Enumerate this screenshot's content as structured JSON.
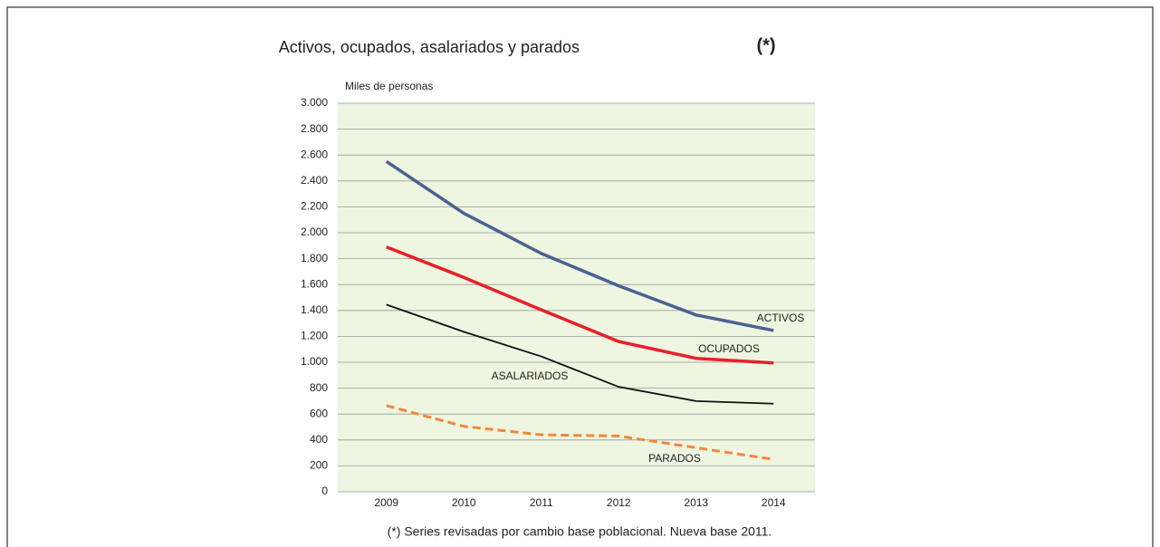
{
  "chart_data": {
    "type": "line",
    "title": "Activos, ocupados, asalariados y parados",
    "title_mark": "(*)",
    "y_label": "Miles de personas",
    "footnote": "(*) Series revisadas por cambio base poblacional. Nueva base 2011.",
    "categories": [
      "2009",
      "2010",
      "2011",
      "2012",
      "2013",
      "2014"
    ],
    "series": [
      {
        "name": "ACTIVOS",
        "color": "#4a6192",
        "style": "solid",
        "values": [
          2550,
          2150,
          1840,
          1590,
          1365,
          1245
        ]
      },
      {
        "name": "OCUPADOS",
        "color": "#e8202a",
        "style": "solid",
        "values": [
          1890,
          1655,
          1405,
          1160,
          1030,
          995
        ]
      },
      {
        "name": "ASALARIADOS",
        "color": "#111111",
        "style": "solid",
        "values": [
          1445,
          1235,
          1045,
          810,
          700,
          680
        ]
      },
      {
        "name": "PARADOS",
        "color": "#f0883c",
        "style": "dashed",
        "values": [
          665,
          505,
          440,
          430,
          340,
          250
        ]
      }
    ],
    "ylim": [
      0,
      3000
    ],
    "yticks": [
      0,
      200,
      400,
      600,
      800,
      {
        "value": 1000,
        "label": "1.000"
      },
      {
        "value": 1200,
        "label": "1.200"
      },
      {
        "value": 1400,
        "label": "1.400"
      },
      {
        "value": 1600,
        "label": "1.600"
      },
      {
        "value": 1800,
        "label": "1.800"
      },
      {
        "value": 2000,
        "label": "2.000"
      },
      {
        "value": 2200,
        "label": "2.200"
      },
      {
        "value": 2400,
        "label": "2.400"
      },
      {
        "value": 2600,
        "label": "2.600"
      },
      {
        "value": 2800,
        "label": "2.800"
      },
      {
        "value": 3000,
        "label": "3.000"
      }
    ],
    "grid": true,
    "background": "#eef5e0"
  }
}
